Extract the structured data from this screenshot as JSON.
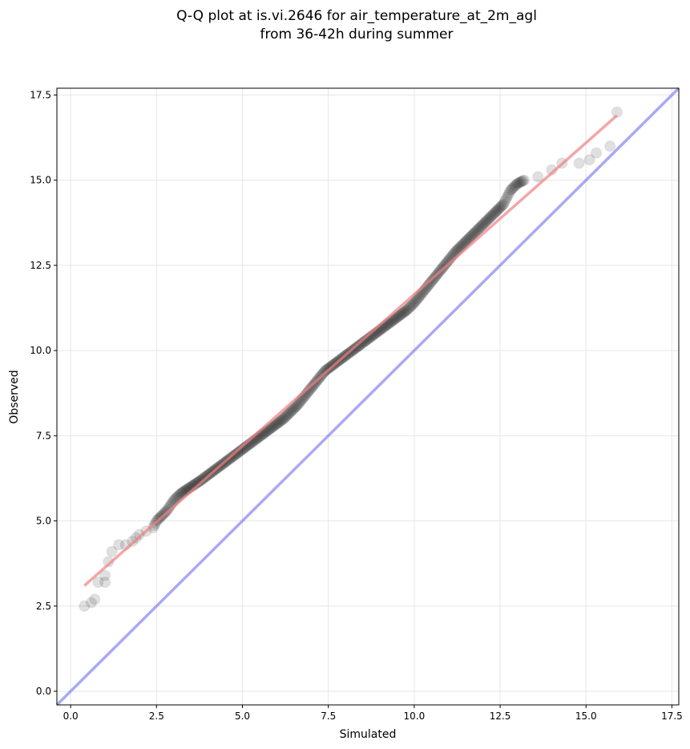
{
  "chart_data": {
    "type": "scatter",
    "title_lines": [
      "Q-Q plot at is.vi.2646 for air_temperature_at_2m_agl",
      "from 36-42h during summer"
    ],
    "xlabel": "Simulated",
    "ylabel": "Observed",
    "xlim": [
      -0.4,
      17.7
    ],
    "ylim": [
      -0.4,
      17.7
    ],
    "xticks": [
      0.0,
      2.5,
      5.0,
      7.5,
      10.0,
      12.5,
      15.0,
      17.5
    ],
    "yticks": [
      0.0,
      2.5,
      5.0,
      7.5,
      10.0,
      12.5,
      15.0,
      17.5
    ],
    "xtick_labels": [
      "0.0",
      "2.5",
      "5.0",
      "7.5",
      "10.0",
      "12.5",
      "15.0",
      "17.5"
    ],
    "ytick_labels": [
      "0.0",
      "2.5",
      "5.0",
      "7.5",
      "10.0",
      "12.5",
      "15.0",
      "17.5"
    ],
    "grid": true,
    "quantile_curve": [
      [
        0.4,
        2.5
      ],
      [
        0.6,
        2.6
      ],
      [
        0.7,
        2.7
      ],
      [
        0.8,
        3.2
      ],
      [
        1.0,
        3.2
      ],
      [
        1.0,
        3.4
      ],
      [
        1.1,
        3.8
      ],
      [
        1.2,
        4.1
      ],
      [
        1.4,
        4.3
      ],
      [
        1.6,
        4.3
      ],
      [
        1.8,
        4.4
      ],
      [
        1.9,
        4.5
      ],
      [
        2.0,
        4.6
      ],
      [
        2.2,
        4.7
      ],
      [
        2.4,
        4.8
      ],
      [
        2.5,
        5.0
      ],
      [
        2.6,
        5.1
      ],
      [
        2.8,
        5.3
      ],
      [
        3.0,
        5.6
      ],
      [
        3.2,
        5.8
      ],
      [
        3.5,
        6.0
      ],
      [
        3.8,
        6.2
      ],
      [
        4.2,
        6.5
      ],
      [
        4.6,
        6.8
      ],
      [
        5.0,
        7.1
      ],
      [
        5.4,
        7.4
      ],
      [
        5.8,
        7.7
      ],
      [
        6.2,
        8.0
      ],
      [
        6.6,
        8.4
      ],
      [
        7.0,
        8.9
      ],
      [
        7.4,
        9.4
      ],
      [
        7.8,
        9.7
      ],
      [
        8.2,
        10.0
      ],
      [
        8.6,
        10.3
      ],
      [
        9.0,
        10.6
      ],
      [
        9.4,
        10.9
      ],
      [
        9.8,
        11.2
      ],
      [
        10.0,
        11.4
      ],
      [
        10.4,
        11.9
      ],
      [
        10.8,
        12.4
      ],
      [
        11.2,
        12.9
      ],
      [
        11.6,
        13.3
      ],
      [
        12.0,
        13.7
      ],
      [
        12.3,
        14.0
      ],
      [
        12.6,
        14.3
      ],
      [
        12.8,
        14.7
      ],
      [
        13.0,
        14.9
      ],
      [
        13.2,
        15.0
      ],
      [
        13.6,
        15.1
      ],
      [
        14.0,
        15.3
      ],
      [
        14.3,
        15.5
      ],
      [
        14.8,
        15.5
      ],
      [
        15.1,
        15.6
      ],
      [
        15.3,
        15.8
      ],
      [
        15.7,
        16.0
      ],
      [
        15.9,
        17.0
      ]
    ],
    "regression_line": {
      "x": [
        0.4,
        15.9
      ],
      "y": [
        3.1,
        16.9
      ],
      "color": "#f08080"
    },
    "reference_line": {
      "x": [
        -0.4,
        17.7
      ],
      "y": [
        -0.4,
        17.7
      ],
      "color": "#7b7bf0"
    },
    "point_color": "#000000"
  }
}
